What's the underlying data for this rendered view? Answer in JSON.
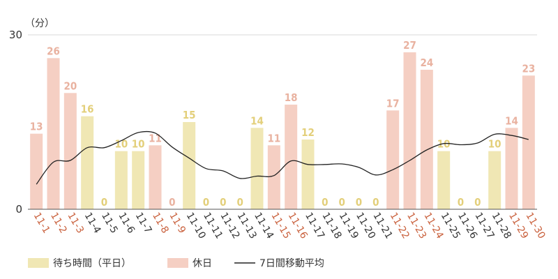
{
  "chart_data": {
    "type": "bar",
    "unit_label": "（分）",
    "ylim": [
      0,
      30
    ],
    "yticks": [
      "0",
      "30"
    ],
    "grid": true,
    "legend_position": "bottom-left",
    "categories": [
      "11-1",
      "11-2",
      "11-3",
      "11-4",
      "11-5",
      "11-6",
      "11-7",
      "11-8",
      "11-9",
      "11-10",
      "11-11",
      "11-12",
      "11-13",
      "11-14",
      "11-15",
      "11-16",
      "11-17",
      "11-18",
      "11-19",
      "11-20",
      "11-21",
      "11-22",
      "11-23",
      "11-24",
      "11-25",
      "11-26",
      "11-27",
      "11-28",
      "11-29",
      "11-30"
    ],
    "values": [
      13,
      26,
      20,
      16,
      0,
      10,
      10,
      11,
      0,
      15,
      0,
      0,
      0,
      14,
      11,
      18,
      12,
      0,
      0,
      0,
      0,
      17,
      27,
      24,
      10,
      0,
      0,
      10,
      14,
      23
    ],
    "is_holiday": [
      true,
      true,
      true,
      false,
      false,
      false,
      false,
      true,
      true,
      false,
      false,
      false,
      false,
      false,
      true,
      true,
      false,
      false,
      false,
      false,
      false,
      true,
      true,
      true,
      false,
      false,
      false,
      false,
      true,
      true
    ],
    "moving_average": [
      4.3,
      8.1,
      8.4,
      10.6,
      10.6,
      11.8,
      13.2,
      13.1,
      10.7,
      8.8,
      7.0,
      6.6,
      5.3,
      5.7,
      5.8,
      8.3,
      7.7,
      7.7,
      7.8,
      7.2,
      5.9,
      6.8,
      8.4,
      10.2,
      11.3,
      11.1,
      11.4,
      12.9,
      12.7,
      12.0
    ],
    "series": [
      {
        "name": "待ち時間（平日）",
        "type": "bar",
        "color": "#f0e7b4"
      },
      {
        "name": "休日",
        "type": "bar",
        "color": "#f5cfc3"
      },
      {
        "name": "7日間移動平均",
        "type": "line",
        "color": "#222222"
      }
    ],
    "colors": {
      "weekday_bar": "#f0e7b4",
      "holiday_bar": "#f5cfc3",
      "weekday_label": "#e3cf7a",
      "holiday_label": "#e9b2a0",
      "holiday_tick": "#c9603c",
      "weekday_tick": "#333333",
      "line": "#222222",
      "grid": "#d9d9d9",
      "axis": "#555555"
    }
  }
}
